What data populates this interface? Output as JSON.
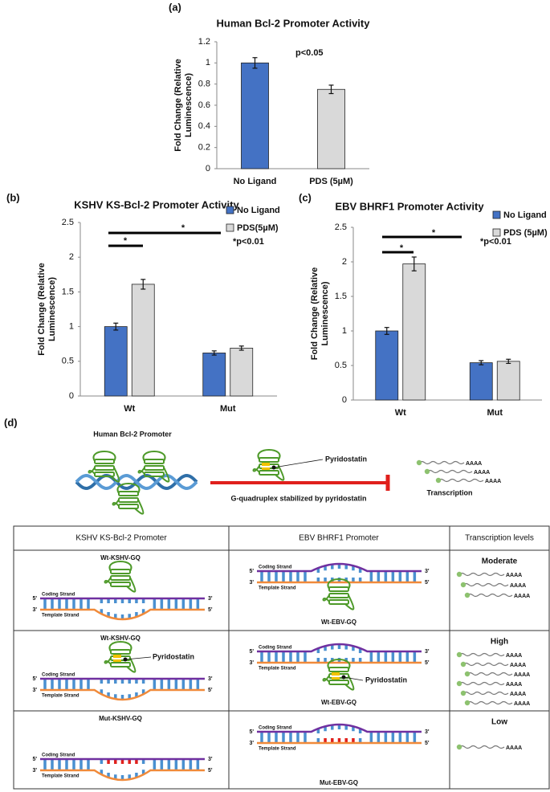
{
  "chart_data": [
    {
      "type": "bar",
      "panel_label": "(a)",
      "title": "Human Bcl-2 Promoter Activity",
      "y_label": [
        "Fold Change (Relative",
        "Luminescence)"
      ],
      "categories": [
        "No Ligand",
        "PDS (5µM)"
      ],
      "values": [
        1.0,
        0.75
      ],
      "errors": [
        0.05,
        0.04
      ],
      "colors": [
        "#4472c4",
        "#d9d9d9"
      ],
      "ylim": [
        0,
        1.2
      ],
      "yticks": [
        0,
        0.2,
        0.4,
        0.6,
        0.8,
        1,
        1.2
      ],
      "annotations": [
        "p<0.05"
      ]
    },
    {
      "type": "bar",
      "panel_label": "(b)",
      "title": "KSHV KS-Bcl-2 Promoter Activity",
      "y_label": [
        "Fold Change (Relative",
        "Luminescence)"
      ],
      "categories": [
        "Wt",
        "Mut"
      ],
      "series": [
        {
          "name": "No Ligand",
          "color": "#4472c4",
          "values": [
            1.0,
            0.62
          ],
          "errors": [
            0.05,
            0.03
          ]
        },
        {
          "name": "PDS(5µM)",
          "color": "#d9d9d9",
          "values": [
            1.61,
            0.69
          ],
          "errors": [
            0.07,
            0.03
          ]
        }
      ],
      "ylim": [
        0,
        2.5
      ],
      "yticks": [
        0,
        0.5,
        1,
        1.5,
        2,
        2.5
      ],
      "legend": "upper right",
      "annotations": [
        "*",
        "*",
        "*p<0.01"
      ]
    },
    {
      "type": "bar",
      "panel_label": "(c)",
      "title": "EBV BHRF1 Promoter Activity",
      "y_label": [
        "Fold Change (Relative",
        "Luminescence)"
      ],
      "categories": [
        "Wt",
        "Mut"
      ],
      "series": [
        {
          "name": "No Ligand",
          "color": "#4472c4",
          "values": [
            1.0,
            0.54
          ],
          "errors": [
            0.05,
            0.03
          ]
        },
        {
          "name": "PDS (5µM)",
          "color": "#d9d9d9",
          "values": [
            1.97,
            0.56
          ],
          "errors": [
            0.1,
            0.03
          ]
        }
      ],
      "ylim": [
        0,
        2.5
      ],
      "yticks": [
        0,
        0.5,
        1,
        1.5,
        2,
        2.5
      ],
      "legend": "upper right",
      "annotations": [
        "*",
        "*",
        "*p<0.01"
      ]
    }
  ],
  "diagram": {
    "panel_label": "(d)",
    "top": {
      "promoter": "Human Bcl-2 Promoter",
      "ligand": "Pyridostatin",
      "caption": "G-quadruplex stabilized by pyridostatin",
      "outcome": "Transcription",
      "poly_a": "AAAA"
    },
    "table": {
      "headers": [
        "KSHV KS-Bcl-2 Promoter",
        "EBV BHRF1 Promoter",
        "Transcription levels"
      ],
      "rows": [
        {
          "kshv": "Wt-KSHV-GQ",
          "ebv": "Wt-EBV-GQ",
          "level": "Moderate"
        },
        {
          "kshv": "Wt-KSHV-GQ",
          "ebv": "Wt-EBV-GQ",
          "level": "High",
          "ligand": "Pyridostatin"
        },
        {
          "kshv": "Mut-KSHV-GQ",
          "ebv": "Mut-EBV-GQ",
          "level": "Low"
        }
      ],
      "strand_labels": {
        "five_prime": "5'",
        "three_prime": "3'",
        "coding": "Coding Strand",
        "template": "Template Strand"
      },
      "poly_a": "AAAA"
    }
  }
}
